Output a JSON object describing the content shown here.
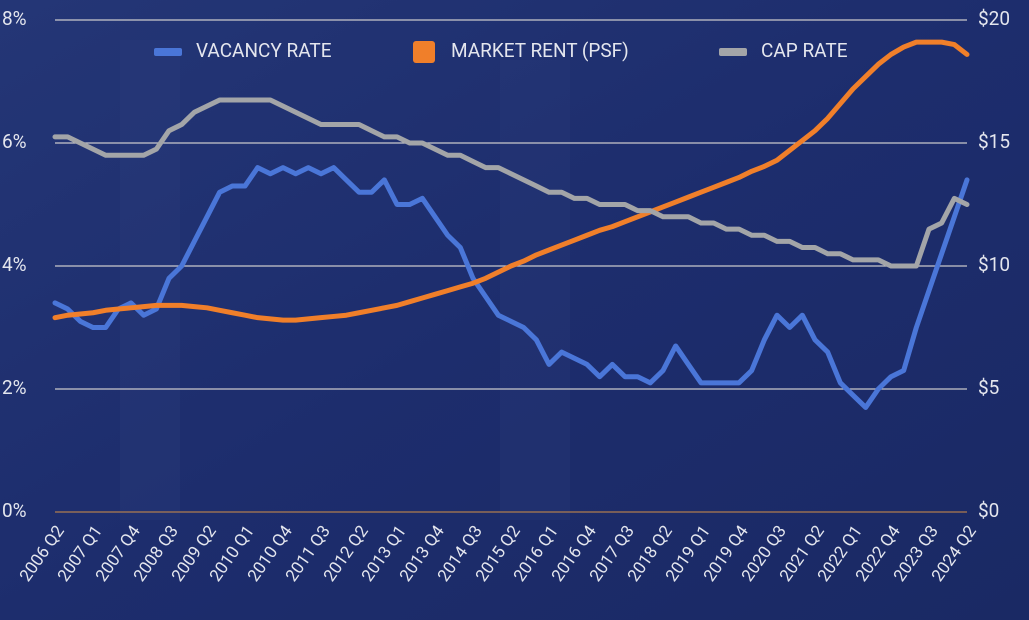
{
  "chart_data": {
    "type": "line",
    "categories": [
      "2006 Q2",
      null,
      null,
      "2007 Q1",
      null,
      null,
      "2007 Q4",
      null,
      null,
      "2008 Q3",
      null,
      null,
      "2009 Q2",
      null,
      null,
      "2010 Q1",
      null,
      null,
      "2010 Q4",
      null,
      null,
      "2011 Q3",
      null,
      null,
      "2012 Q2",
      null,
      null,
      "2013 Q1",
      null,
      null,
      "2013 Q4",
      null,
      null,
      "2014 Q3",
      null,
      null,
      "2015 Q2",
      null,
      null,
      "2016 Q1",
      null,
      null,
      "2016 Q4",
      null,
      null,
      "2017 Q3",
      null,
      null,
      "2018 Q2",
      null,
      null,
      "2019 Q1",
      null,
      null,
      "2019 Q4",
      null,
      null,
      "2020 Q3",
      null,
      null,
      "2021 Q2",
      null,
      null,
      "2022 Q1",
      null,
      null,
      "2022 Q4",
      null,
      null,
      "2023 Q3",
      null,
      null,
      "2024 Q2"
    ],
    "series": [
      {
        "name": "VACANCY RATE",
        "color": "#4a76d8",
        "values": [
          3.4,
          3.3,
          3.1,
          3.0,
          3.0,
          3.3,
          3.4,
          3.2,
          3.3,
          3.8,
          4.0,
          4.4,
          4.8,
          5.2,
          5.3,
          5.3,
          5.6,
          5.5,
          5.6,
          5.5,
          5.6,
          5.5,
          5.6,
          5.4,
          5.2,
          5.2,
          5.4,
          5.0,
          5.0,
          5.1,
          4.8,
          4.5,
          4.3,
          3.8,
          3.5,
          3.2,
          3.1,
          3.0,
          2.8,
          2.4,
          2.6,
          2.5,
          2.4,
          2.2,
          2.4,
          2.2,
          2.2,
          2.1,
          2.3,
          2.7,
          2.4,
          2.1,
          2.1,
          2.1,
          2.1,
          2.3,
          2.8,
          3.2,
          3.0,
          3.2,
          2.8,
          2.6,
          2.1,
          1.9,
          1.7,
          2.0,
          2.2,
          2.3,
          3.0,
          3.6,
          4.2,
          4.8,
          5.4
        ]
      },
      {
        "name": "MARKET RENT (PSF)",
        "color": "#f07f2a",
        "axis": "y2",
        "values": [
          7.9,
          8.0,
          8.05,
          8.1,
          8.2,
          8.25,
          8.3,
          8.35,
          8.4,
          8.4,
          8.4,
          8.35,
          8.3,
          8.2,
          8.1,
          8.0,
          7.9,
          7.85,
          7.8,
          7.8,
          7.85,
          7.9,
          7.95,
          8.0,
          8.1,
          8.2,
          8.3,
          8.4,
          8.55,
          8.7,
          8.85,
          9.0,
          9.15,
          9.3,
          9.5,
          9.75,
          10.0,
          10.2,
          10.45,
          10.65,
          10.85,
          11.05,
          11.25,
          11.45,
          11.6,
          11.8,
          12.0,
          12.2,
          12.4,
          12.6,
          12.8,
          13.0,
          13.2,
          13.4,
          13.6,
          13.85,
          14.05,
          14.3,
          14.7,
          15.1,
          15.5,
          16.0,
          16.6,
          17.2,
          17.7,
          18.2,
          18.6,
          18.9,
          19.1,
          19.1,
          19.1,
          19.0,
          18.6
        ]
      },
      {
        "name": "CAP RATE",
        "color": "#a3a5a8",
        "values": [
          6.1,
          6.1,
          6.0,
          5.9,
          5.8,
          5.8,
          5.8,
          5.8,
          5.9,
          6.2,
          6.3,
          6.5,
          6.6,
          6.7,
          6.7,
          6.7,
          6.7,
          6.7,
          6.6,
          6.5,
          6.4,
          6.3,
          6.3,
          6.3,
          6.3,
          6.2,
          6.1,
          6.1,
          6.0,
          6.0,
          5.9,
          5.8,
          5.8,
          5.7,
          5.6,
          5.6,
          5.5,
          5.4,
          5.3,
          5.2,
          5.2,
          5.1,
          5.1,
          5.0,
          5.0,
          5.0,
          4.9,
          4.9,
          4.8,
          4.8,
          4.8,
          4.7,
          4.7,
          4.6,
          4.6,
          4.5,
          4.5,
          4.4,
          4.4,
          4.3,
          4.3,
          4.2,
          4.2,
          4.1,
          4.1,
          4.1,
          4.0,
          4.0,
          4.0,
          4.6,
          4.7,
          5.1,
          5.0
        ]
      }
    ],
    "ylim": [
      0,
      8
    ],
    "yticks": [
      {
        "value": 0,
        "label": "0%"
      },
      {
        "value": 2,
        "label": "2%"
      },
      {
        "value": 4,
        "label": "4%"
      },
      {
        "value": 6,
        "label": "6%"
      },
      {
        "value": 8,
        "label": "8%"
      }
    ],
    "y2lim": [
      0,
      20
    ],
    "y2ticks": [
      {
        "value": 0,
        "label": "$0"
      },
      {
        "value": 5,
        "label": "$5"
      },
      {
        "value": 10,
        "label": "$10"
      },
      {
        "value": 15,
        "label": "$15"
      },
      {
        "value": 20,
        "label": "$20"
      }
    ],
    "grid": true,
    "legend": "top"
  }
}
